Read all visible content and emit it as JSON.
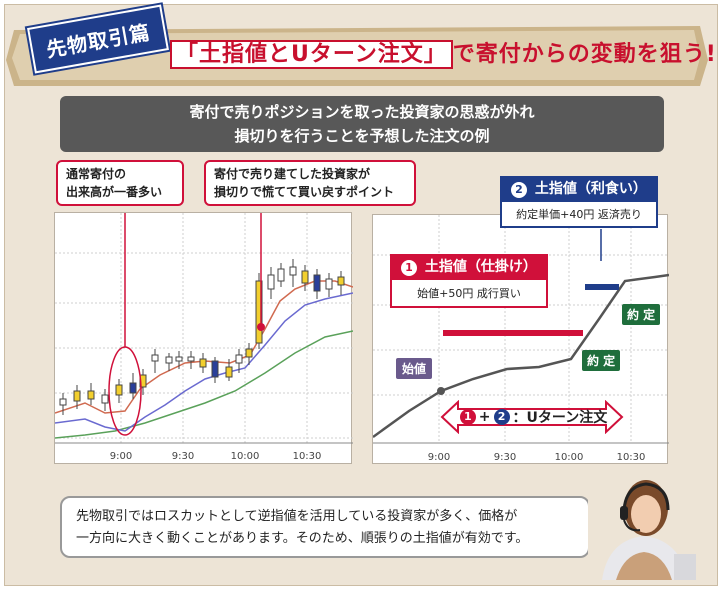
{
  "banner": {
    "tag": "先物取引篇",
    "headline_boxed": "「土指値とUターン注文」",
    "headline_rest": "で寄付からの変動を狙う!"
  },
  "subbar": {
    "line1": "寄付で売りポジションを取った投資家の思惑が外れ",
    "line2": "損切りを行うことを予想した注文の例"
  },
  "callouts": {
    "left_line1": "通常寄付の",
    "left_line2": "出来高が一番多い",
    "right_line1": "寄付で売り建てした投資家が",
    "right_line2": "損切りで慌てて買い戻すポイント"
  },
  "left_chart": {
    "xticks": [
      "9:00",
      "9:30",
      "10:00",
      "10:30"
    ]
  },
  "right_chart": {
    "xticks": [
      "9:00",
      "9:30",
      "10:00",
      "10:30"
    ],
    "limit1_title": "土指値（仕掛け）",
    "limit1_num": "1",
    "limit1_body": "始値+50円 成行買い",
    "limit2_title": "土指値（利食い）",
    "limit2_num": "2",
    "limit2_body": "約定単価+40円 返済売り",
    "open_label": "始値",
    "fill1": "約 定",
    "fill2": "約 定",
    "uturn_n1": "1",
    "uturn_plus": "+",
    "uturn_n2": "2",
    "uturn_text": "：Uターン注文"
  },
  "speech": {
    "line1": "先物取引ではロスカットとして逆指値を活用している投資家が多く、価格が",
    "line2": "一方向に大きく動くことがあります。そのため、順張りの土指値が有効です。"
  },
  "colors": {
    "red": "#d0103a",
    "navy": "#1f3d8a",
    "green": "#1f6e3c"
  }
}
